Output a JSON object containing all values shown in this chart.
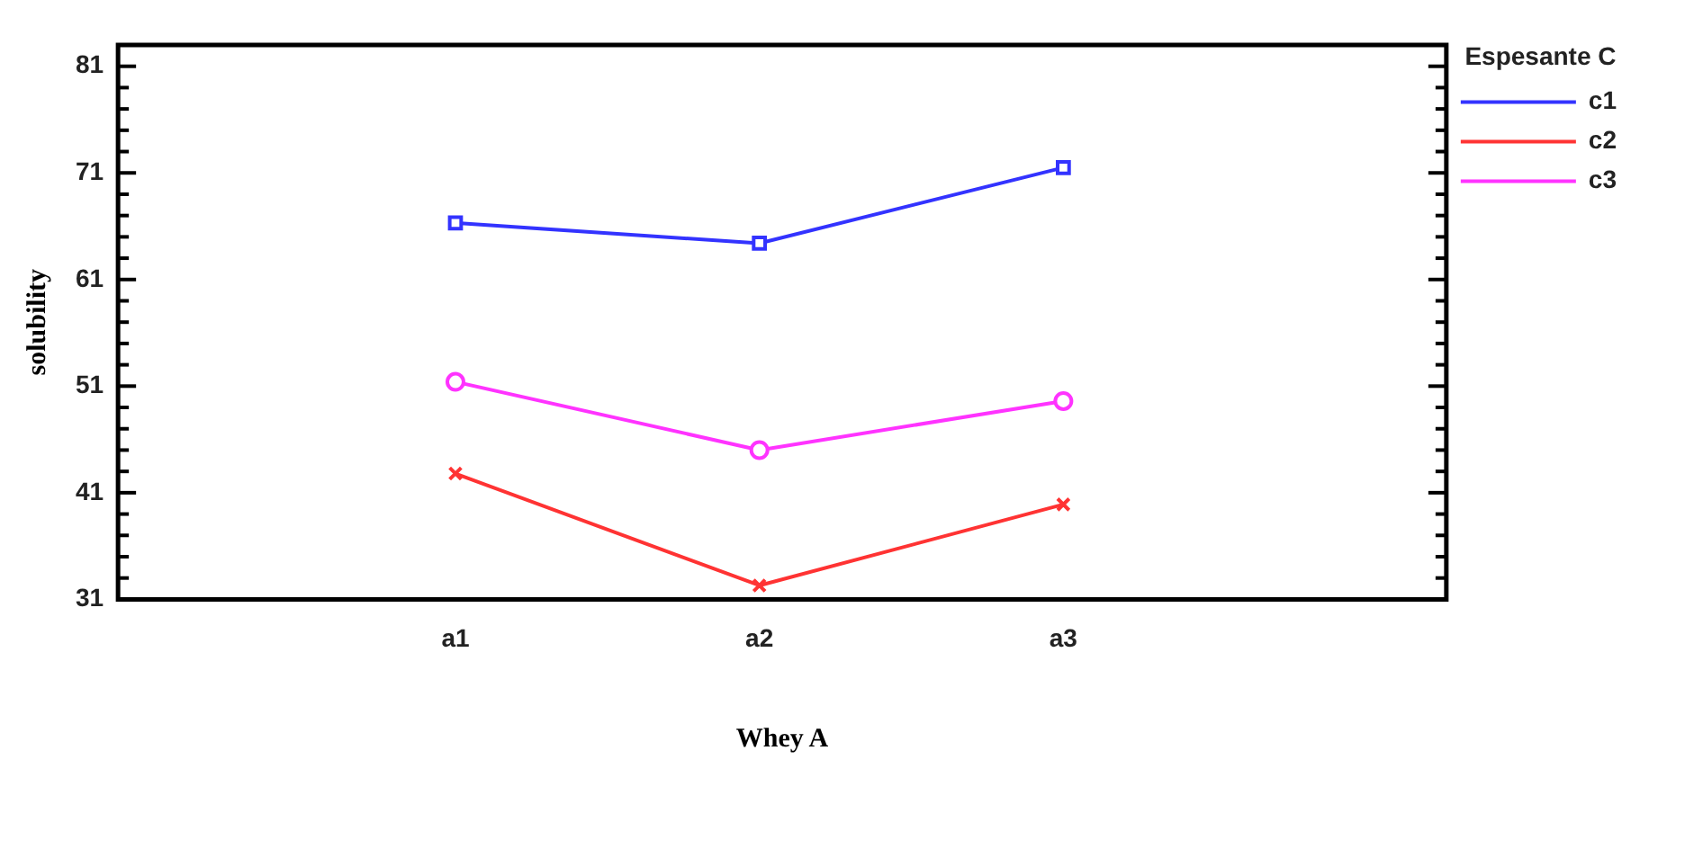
{
  "chart_data": {
    "type": "line",
    "ylabel": "solubility",
    "xlabel": "Whey A",
    "legend_title": "Espesante C",
    "categories": [
      "a1",
      "a2",
      "a3"
    ],
    "series": [
      {
        "name": "c1",
        "color": "#3333ff",
        "marker": "square",
        "values": [
          66.3,
          64.4,
          71.5
        ]
      },
      {
        "name": "c2",
        "color": "#ff3333",
        "marker": "cross",
        "values": [
          42.8,
          32.3,
          39.9
        ]
      },
      {
        "name": "c3",
        "color": "#ff33ff",
        "marker": "circle",
        "values": [
          51.4,
          45.0,
          49.6
        ]
      }
    ],
    "ylim": [
      31,
      83
    ],
    "yticks": [
      31,
      {
        "value": 33,
        "label": null
      },
      {
        "value": 35,
        "label": null
      },
      {
        "value": 37,
        "label": null
      },
      {
        "value": 39,
        "label": null
      },
      41,
      {
        "value": 43,
        "label": null
      },
      {
        "value": 45,
        "label": null
      },
      {
        "value": 47,
        "label": null
      },
      {
        "value": 49,
        "label": null
      },
      51,
      {
        "value": 53,
        "label": null
      },
      {
        "value": 55,
        "label": null
      },
      {
        "value": 57,
        "label": null
      },
      {
        "value": 59,
        "label": null
      },
      61,
      {
        "value": 63,
        "label": null
      },
      {
        "value": 65,
        "label": null
      },
      {
        "value": 67,
        "label": null
      },
      {
        "value": 69,
        "label": null
      },
      71,
      {
        "value": 73,
        "label": null
      },
      {
        "value": 75,
        "label": null
      },
      {
        "value": 77,
        "label": null
      },
      {
        "value": 79,
        "label": null
      },
      81
    ],
    "grid": false,
    "legend": "top right",
    "line_style": "solid"
  }
}
